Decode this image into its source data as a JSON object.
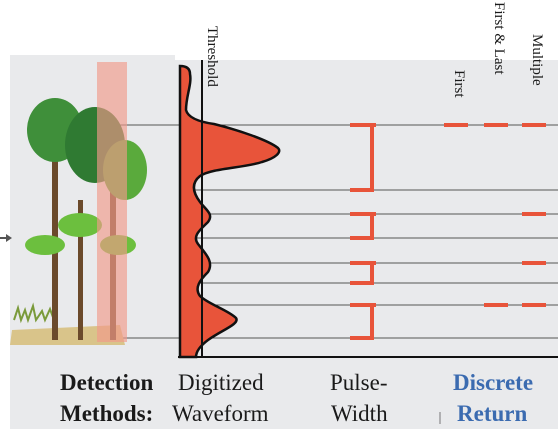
{
  "header_labels": {
    "threshold": "Threshold",
    "first": "First",
    "first_last": "First & Last",
    "multiple": "Multiple"
  },
  "bottom_labels": {
    "detection": "Detection",
    "methods": "Methods:",
    "digitized": "Digitized",
    "waveform": "Waveform",
    "pulse": "Pulse-",
    "width": "Width",
    "discrete": "Discrete",
    "return": "Return"
  },
  "colors": {
    "accent": "#e8543a",
    "background_gray": "#e9eaec",
    "line_gray": "#555555",
    "discrete_blue": "#3b6bb0"
  }
}
